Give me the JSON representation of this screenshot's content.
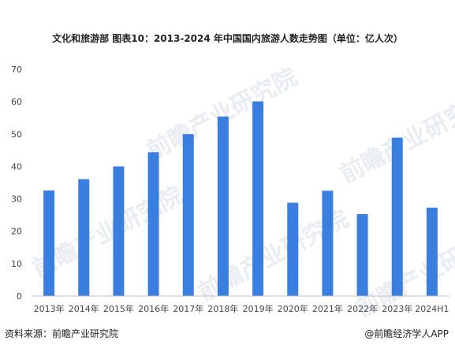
{
  "header": {
    "title": "文化和旅游部  图表10：2013-2024 年中国国内旅游人数走势图（单位：亿人次）"
  },
  "footer": {
    "source": "资料来源：前瞻产业研究院",
    "brand": "@前瞻经济学人APP"
  },
  "watermark": {
    "text": "前瞻产业研究院"
  },
  "chart_data": {
    "type": "bar",
    "title": "文化和旅游部  图表10：2013-2024 年中国国内旅游人数走势图（单位：亿人次）",
    "categories": [
      "2013年",
      "2014年",
      "2015年",
      "2016年",
      "2017年",
      "2018年",
      "2019年",
      "2020年",
      "2021年",
      "2022年",
      "2023年",
      "2024H1"
    ],
    "values": [
      32.6,
      36.1,
      40.0,
      44.4,
      50.0,
      55.4,
      60.1,
      28.8,
      32.5,
      25.3,
      48.9,
      27.3
    ],
    "ylim": [
      0,
      70
    ],
    "yticks": [
      0,
      10,
      20,
      30,
      40,
      50,
      60,
      70
    ],
    "grid": false,
    "legend": "none",
    "bar_color": "#3a7fe0"
  }
}
